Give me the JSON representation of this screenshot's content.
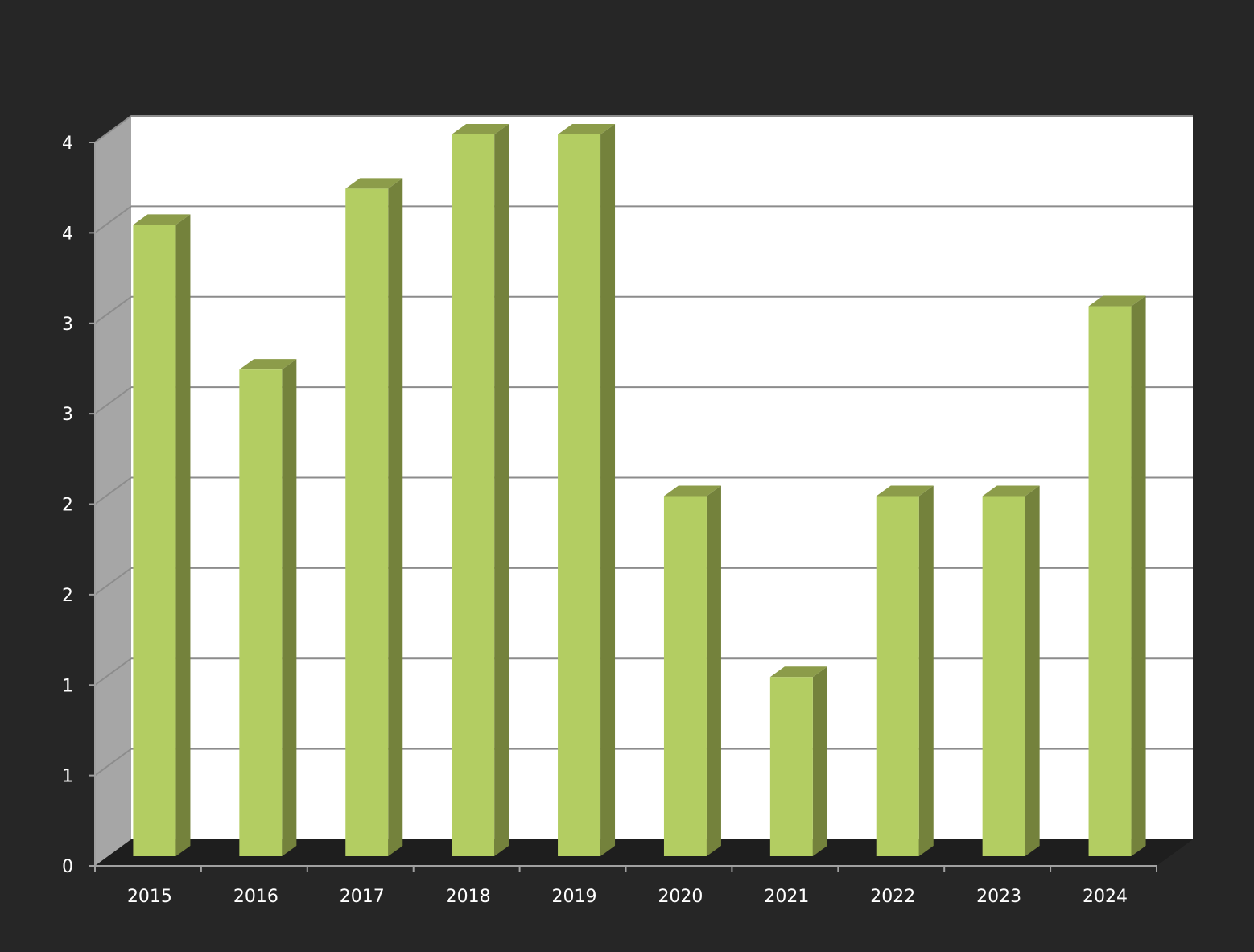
{
  "chart_data": {
    "type": "bar",
    "categories": [
      "2015",
      "2016",
      "2017",
      "2018",
      "2019",
      "2020",
      "2021",
      "2022",
      "2023",
      "2024"
    ],
    "values": [
      3.5,
      2.7,
      3.7,
      4.0,
      4.0,
      2.0,
      1.0,
      2.0,
      2.0,
      3.05
    ],
    "ylim": [
      0,
      4
    ],
    "y_tick_values": [
      0,
      0.5,
      1.0,
      1.5,
      2.0,
      2.5,
      3.0,
      3.5,
      4.0
    ],
    "y_tick_labels": [
      "0",
      "1",
      "1",
      "2",
      "2",
      "3",
      "3",
      "4",
      "4"
    ],
    "grid": true,
    "style": "3d-column"
  },
  "colors": {
    "background": "#262626",
    "bar_front": "#b3cd62",
    "bar_side": "#74823c",
    "bar_top": "#8c9c4a",
    "wall": "#ffffff",
    "side_wall": "#a6a6a6",
    "floor": "#1e1e1e",
    "grid": "#8c8c8c",
    "axis": "#a0a0a0",
    "text": "#ffffff"
  }
}
